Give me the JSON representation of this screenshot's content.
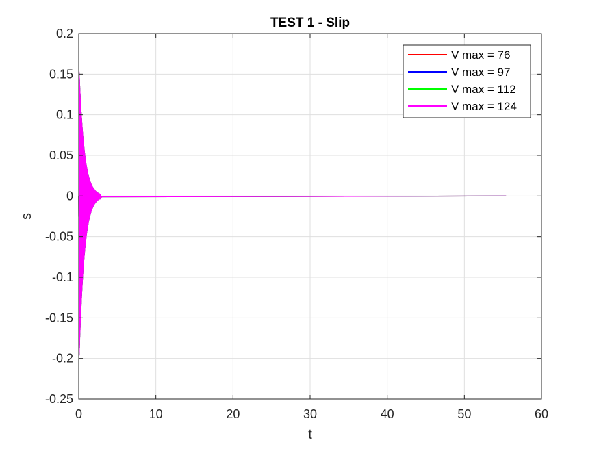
{
  "chart_data": {
    "type": "line",
    "title": "TEST 1 - Slip",
    "xlabel": "t",
    "ylabel": "s",
    "xlim": [
      0,
      60
    ],
    "ylim": [
      -0.25,
      0.2
    ],
    "xticks": [
      0,
      10,
      20,
      30,
      40,
      50,
      60
    ],
    "yticks": [
      -0.25,
      -0.2,
      -0.15,
      -0.1,
      -0.05,
      0,
      0.05,
      0.1,
      0.15,
      0.2
    ],
    "xtick_labels": [
      "0",
      "10",
      "20",
      "30",
      "40",
      "50",
      "60"
    ],
    "ytick_labels": [
      "-0.25",
      "-0.2",
      "-0.15",
      "-0.1",
      "-0.05",
      "0",
      "0.05",
      "0.1",
      "0.15",
      "0.2"
    ],
    "grid": true,
    "legend_position": "top-right",
    "series": [
      {
        "name": "V max = 76",
        "color": "#ff0000",
        "t_end": 55.4,
        "peak_max": 0.165,
        "peak_min": -0.214,
        "decay_end_t": 2.8
      },
      {
        "name": "V max = 97",
        "color": "#0000ff",
        "t_end": 55.4,
        "peak_max": 0.165,
        "peak_min": -0.214,
        "decay_end_t": 2.8
      },
      {
        "name": "V max = 112",
        "color": "#00ff00",
        "t_end": 55.4,
        "peak_max": 0.165,
        "peak_min": -0.214,
        "decay_end_t": 2.8
      },
      {
        "name": "V max = 124",
        "color": "#ff00ff",
        "t_end": 55.4,
        "peak_max": 0.166,
        "peak_min": -0.215,
        "decay_end_t": 2.8
      }
    ]
  }
}
